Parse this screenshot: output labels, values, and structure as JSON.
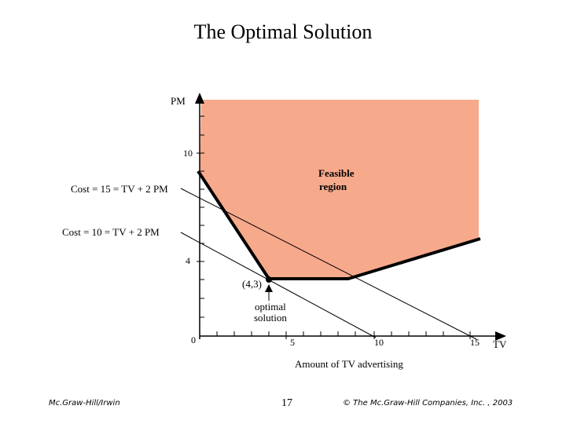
{
  "title": "The Optimal Solution",
  "diagram": {
    "y_axis_label": "PM",
    "x_axis_label": "TV",
    "x_axis_title": "Amount of TV advertising",
    "x_ticks": [
      "0",
      "5",
      "10",
      "15"
    ],
    "y_ticks": [
      "4",
      "10"
    ],
    "region_label_line1": "Feasible",
    "region_label_line2": "region",
    "line_cost15_label": "Cost = 15 = TV + 2 PM",
    "line_cost10_label": "Cost = 10 = TV + 2 PM",
    "point_label": "(4,3)",
    "optimal_label_line1": "optimal",
    "optimal_label_line2": "solution",
    "colors": {
      "feasible_region": "#f7a98c",
      "boundary": "#000000"
    }
  },
  "footer": {
    "left": "Mc.Graw-Hill/Irwin",
    "page_number": "17",
    "right": "© The Mc.Graw-Hill Companies, Inc. , 2003"
  }
}
